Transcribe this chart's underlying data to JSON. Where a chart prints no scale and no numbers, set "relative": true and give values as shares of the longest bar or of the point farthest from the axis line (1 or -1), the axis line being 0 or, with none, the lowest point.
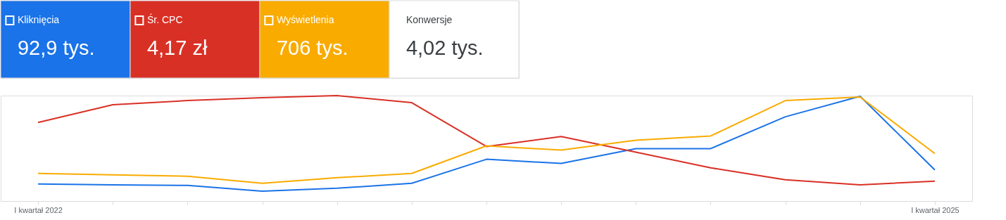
{
  "chart_data": {
    "type": "line",
    "relative": true,
    "legend": "top left",
    "marker": "none",
    "line_style": "solid",
    "categories": [
      "I kwartał 2022",
      null,
      null,
      null,
      null,
      null,
      null,
      null,
      null,
      null,
      null,
      null,
      "I kwartał 2025"
    ],
    "series": [
      {
        "name": "Kliknięcia",
        "color": "#1a73e8",
        "values": [
          0.161,
          0.154,
          0.148,
          0.094,
          0.121,
          0.168,
          0.396,
          0.356,
          0.497,
          0.497,
          0.799,
          0.993,
          0.295
        ]
      },
      {
        "name": "Śr. CPC",
        "color": "#d93025",
        "values": [
          0.745,
          0.913,
          0.953,
          0.98,
          1,
          0.933,
          0.517,
          0.611,
          0.463,
          0.315,
          0.201,
          0.154,
          0.188
        ]
      },
      {
        "name": "Wyświetlenia",
        "color": "#f9ab00",
        "values": [
          0.262,
          0.248,
          0.235,
          0.168,
          0.221,
          0.262,
          0.523,
          0.483,
          0.577,
          0.617,
          0.953,
          0.987,
          0.45
        ]
      }
    ],
    "annotations": [
      "92,9 tys.",
      "4,17 zł",
      "706 tys.",
      "Konwersje",
      "4,02 tys."
    ]
  }
}
